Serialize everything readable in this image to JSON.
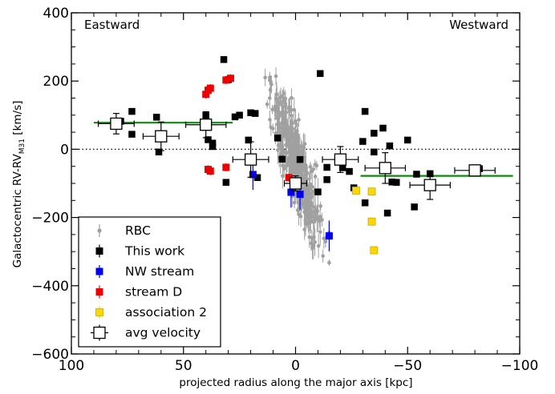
{
  "chart_data": {
    "type": "scatter",
    "xlabel": "projected radius along the major axis [kpc]",
    "ylabel": "Galactocentric RV-RV",
    "ylabel_subscript": "M31",
    "ylabel_unit": " [km/s]",
    "xlim": [
      100,
      -100
    ],
    "ylim": [
      -600,
      400
    ],
    "x_ticks": [
      100,
      50,
      0,
      -50,
      -100
    ],
    "x_tick_labels": [
      "100",
      "50",
      "0",
      "−50",
      "−100"
    ],
    "y_ticks": [
      -600,
      -400,
      -200,
      0,
      200,
      400
    ],
    "y_tick_labels": [
      "−600",
      "−400",
      "−200",
      "0",
      "200",
      "400"
    ],
    "annotations": {
      "left": "Eastward",
      "right": "Westward"
    },
    "zero_line": {
      "y": 0,
      "style": "dotted"
    },
    "legend": {
      "position": "bottom-left",
      "entries": [
        "RBC",
        "This work",
        "NW stream",
        "stream D",
        "association 2",
        "avg velocity"
      ]
    },
    "colors": {
      "rbc": "#a0a0a0",
      "this_work": "#000000",
      "nw_stream": "#0000ee",
      "stream_d": "#ee0000",
      "association_2": "#ffd700",
      "fit_line": "#118811",
      "avg_face": "#ffffff"
    },
    "series": [
      {
        "name": "This work",
        "x": [
          78,
          73,
          73,
          61,
          62,
          40,
          39,
          37,
          37,
          32,
          30,
          31,
          27,
          25,
          21,
          20,
          18,
          17,
          8,
          6,
          -2,
          -10,
          -11,
          -14,
          -14,
          -21,
          -24,
          -26,
          -30,
          -31,
          -31,
          -35,
          -35,
          -39,
          -41,
          -42,
          -43,
          -45,
          -50,
          -53,
          -54,
          -60,
          -82
        ],
        "y": [
          82,
          111,
          44,
          -8,
          94,
          100,
          28,
          18,
          8,
          263,
          204,
          -97,
          95,
          100,
          27,
          107,
          105,
          -83,
          33,
          -29,
          -30,
          -125,
          222,
          -89,
          -53,
          -54,
          -65,
          -113,
          23,
          -157,
          111,
          47,
          -8,
          62,
          -187,
          10,
          -96,
          -97,
          27,
          -169,
          -73,
          -72,
          -57
        ]
      },
      {
        "name": "NW stream",
        "x": [
          19,
          2,
          -2,
          -15
        ],
        "y": [
          -74,
          -126,
          -132,
          -254
        ]
      },
      {
        "name": "stream D",
        "x": [
          40,
          39,
          39,
          38,
          38,
          31,
          31,
          29,
          3
        ],
        "y": [
          161,
          173,
          -59,
          -64,
          179,
          -53,
          203,
          208,
          -83
        ]
      },
      {
        "name": "association 2",
        "x": [
          -27,
          -34,
          -34,
          -35
        ],
        "y": [
          -121,
          -124,
          -212,
          -296
        ]
      },
      {
        "name": "avg velocity",
        "x": [
          80,
          60,
          40,
          20,
          0,
          -20,
          -40,
          -60,
          -80
        ],
        "y": [
          75,
          38,
          72,
          -30,
          -100,
          -30,
          -55,
          -105,
          -62
        ],
        "xerr": [
          8,
          8,
          9,
          8,
          5,
          8,
          9,
          9,
          9
        ],
        "yerr": [
          30,
          42,
          38,
          52,
          22,
          38,
          45,
          42,
          12
        ]
      }
    ],
    "rbc_cloud": {
      "description_free": true,
      "x_range": [
        -15,
        15
      ],
      "y_at_x_plus_15": 200,
      "y_at_x_minus_15": -300,
      "count": 420
    },
    "fit_lines": [
      {
        "x": [
          90,
          28
        ],
        "y": [
          78,
          78
        ]
      },
      {
        "x": [
          -29,
          -97
        ],
        "y": [
          -78,
          -78
        ]
      }
    ]
  }
}
